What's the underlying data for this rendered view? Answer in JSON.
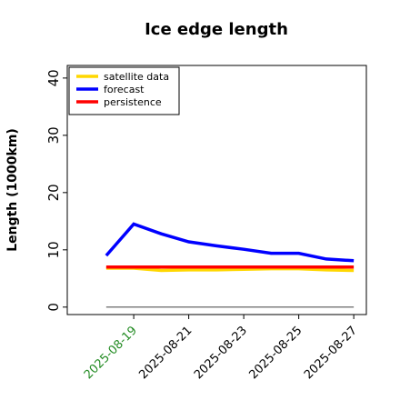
{
  "chart_data": {
    "type": "line",
    "title": "Ice edge length",
    "ylabel": "Length (1000km)",
    "x": [
      "2025-08-18",
      "2025-08-19",
      "2025-08-20",
      "2025-08-21",
      "2025-08-22",
      "2025-08-23",
      "2025-08-24",
      "2025-08-25",
      "2025-08-26",
      "2025-08-27"
    ],
    "series": [
      {
        "name": "satellite data",
        "color": "#ffd700",
        "values": [
          6.8,
          6.8,
          6.4,
          6.5,
          6.5,
          6.6,
          6.7,
          6.7,
          6.5,
          6.4
        ]
      },
      {
        "name": "forecast",
        "color": "#0000ff",
        "values": [
          9.0,
          14.5,
          12.8,
          11.4,
          10.7,
          10.1,
          9.4,
          9.4,
          8.4,
          8.1
        ]
      },
      {
        "name": "persistence",
        "color": "#ff0000",
        "values": [
          7.0,
          7.0,
          7.0,
          7.0,
          7.0,
          7.0,
          7.0,
          7.0,
          7.0,
          7.0
        ]
      }
    ],
    "zero_line": {
      "value": 0,
      "color": "#808080"
    },
    "xlim": [
      "2025-08-16T14:00",
      "2025-08-27T11:00"
    ],
    "xticks": [
      "2025-08-19",
      "2025-08-21",
      "2025-08-23",
      "2025-08-25",
      "2025-08-27"
    ],
    "xtick_colors": [
      "#228b22",
      "#000000",
      "#000000",
      "#000000",
      "#000000"
    ],
    "ylim": [
      -1.3,
      42.2
    ],
    "yticks": [
      0,
      10,
      20,
      30,
      40
    ],
    "legend": "upper left",
    "grid": false
  }
}
